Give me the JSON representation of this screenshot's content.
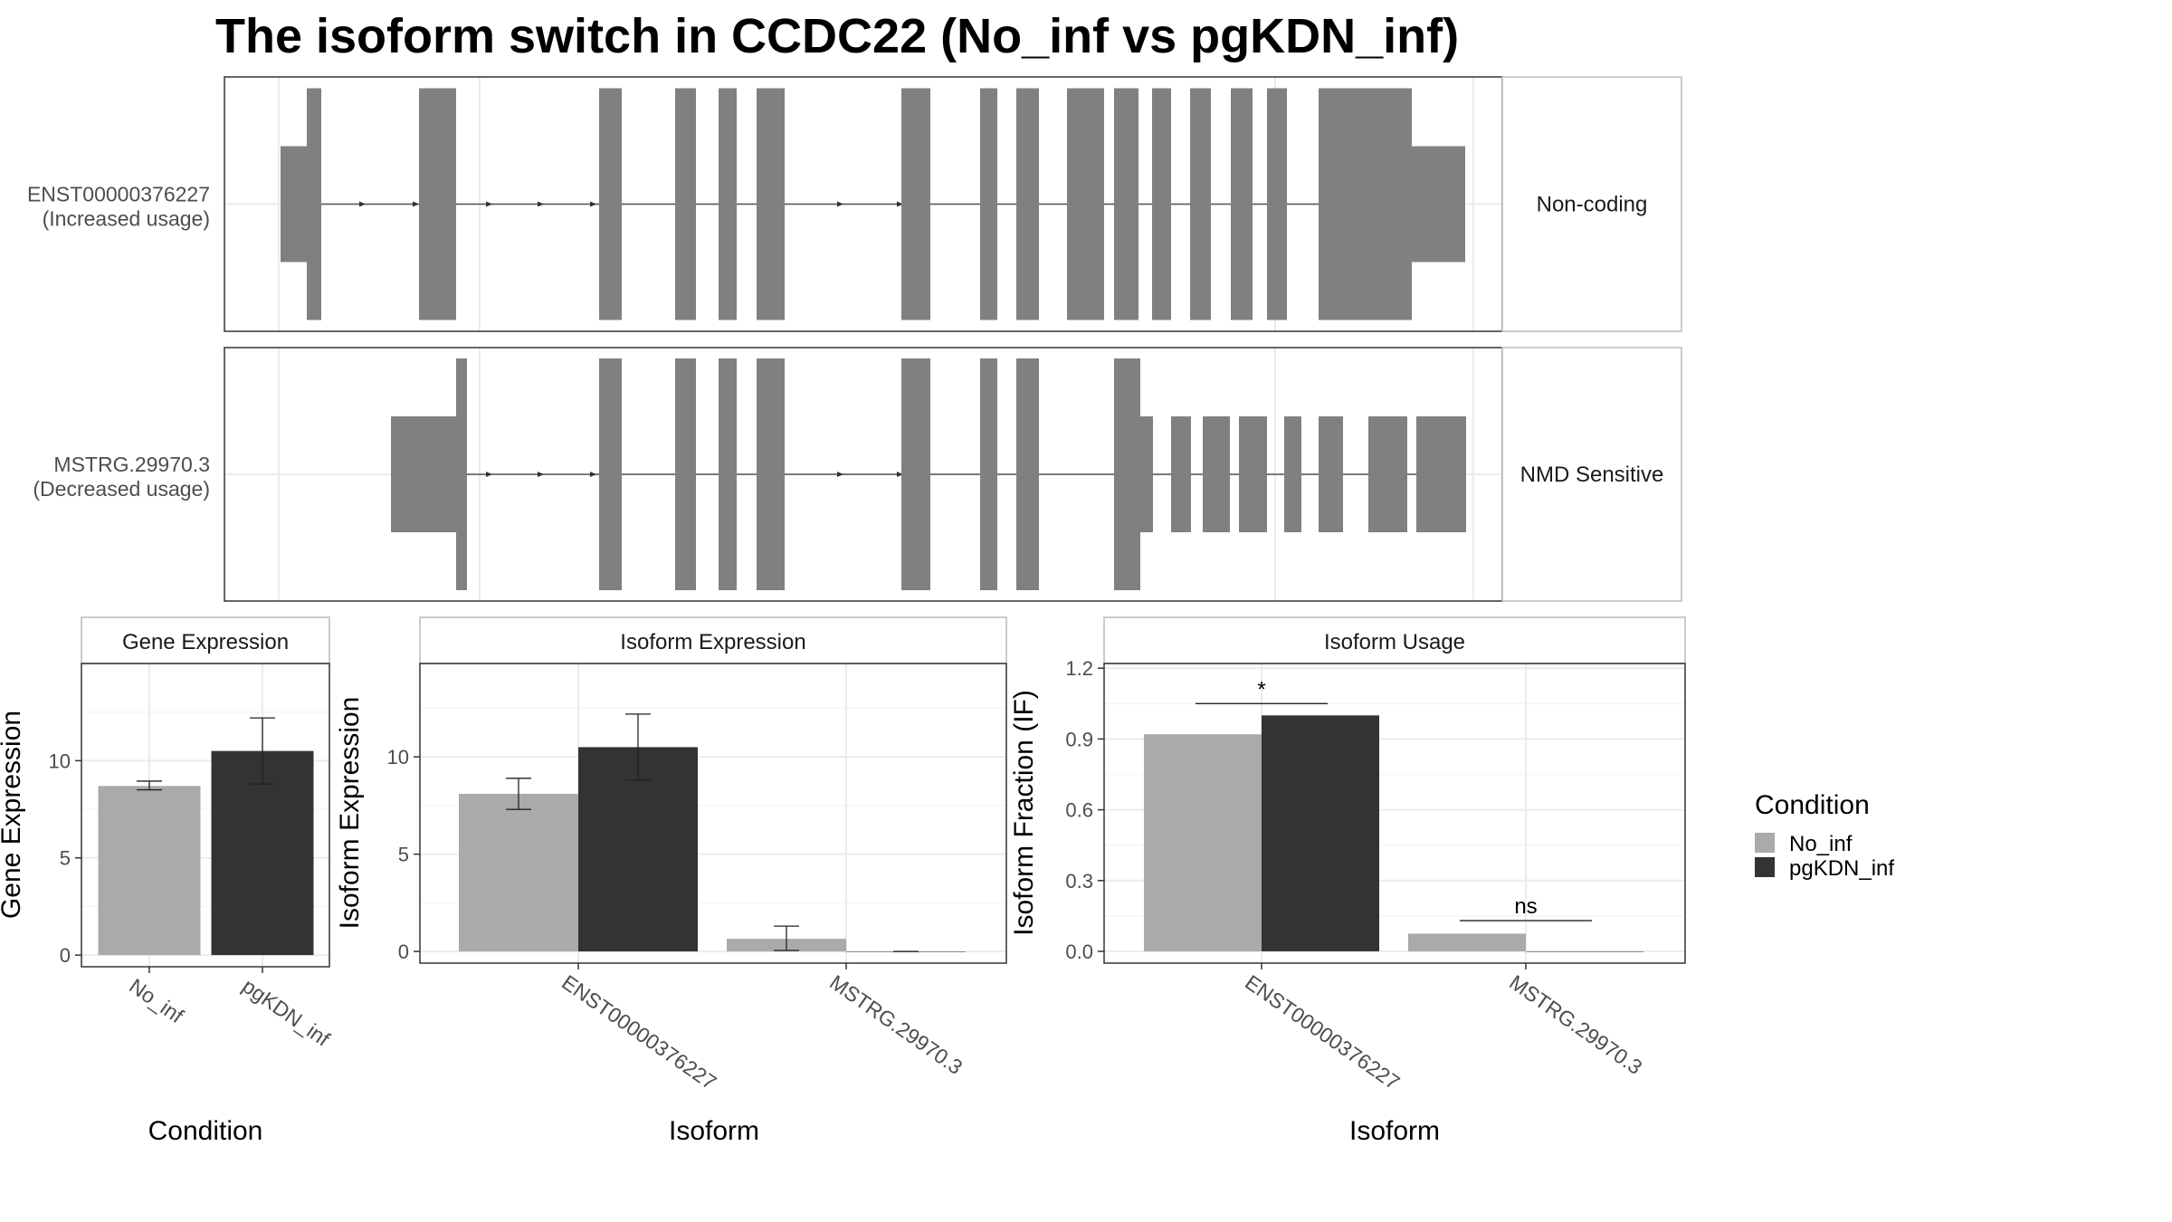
{
  "figure_title": "The isoform switch in CCDC22 (No_inf vs pgKDN_inf)",
  "colors": {
    "no_inf": "#aaaaaa",
    "pgkdn_inf": "#333333",
    "feature": "#808080",
    "grid_major": "#ebebeb",
    "grid_minor": "#f5f5f5",
    "panel_border": "#333333",
    "strip_border": "#bbbbbb",
    "text": "#4d4d4d"
  },
  "legend": {
    "title": "Condition",
    "items": [
      {
        "label": "No_inf",
        "color": "#aaaaaa"
      },
      {
        "label": "pgKDN_inf",
        "color": "#333333"
      }
    ]
  },
  "chart_data": [
    {
      "type": "gene_structure",
      "tracks": [
        {
          "name": "ENST00000376227",
          "usage": "(Increased usage)",
          "category": "Non-coding",
          "utr": [
            [
              62,
              91
            ],
            [
              1312,
              1371
            ]
          ],
          "cds": [
            [
              91,
              107
            ],
            [
              215,
              256
            ],
            [
              414,
              439
            ],
            [
              498,
              521
            ],
            [
              546,
              566
            ],
            [
              588,
              619
            ],
            [
              748,
              780
            ],
            [
              835,
              854
            ],
            [
              875,
              900
            ],
            [
              931,
              972
            ],
            [
              983,
              1010
            ],
            [
              1025,
              1046
            ],
            [
              1067,
              1090
            ],
            [
              1112,
              1136
            ],
            [
              1152,
              1174
            ],
            [
              1209,
              1236
            ],
            [
              1236,
              1247
            ],
            [
              1247,
              1312
            ]
          ],
          "arrows": [
            153,
            212,
            293,
            350,
            408,
            681,
            747
          ]
        },
        {
          "name": "MSTRG.29970.3",
          "usage": "(Decreased usage)",
          "category": "NMD Sensitive",
          "utr": [
            [
              184,
              256
            ],
            [
              1012,
              1026
            ],
            [
              1046,
              1068
            ],
            [
              1081,
              1111
            ],
            [
              1121,
              1152
            ],
            [
              1171,
              1190
            ],
            [
              1209,
              1236
            ],
            [
              1264,
              1307
            ],
            [
              1317,
              1372
            ]
          ],
          "cds": [
            [
              256,
              268
            ],
            [
              414,
              439
            ],
            [
              498,
              521
            ],
            [
              546,
              566
            ],
            [
              588,
              619
            ],
            [
              748,
              780
            ],
            [
              835,
              854
            ],
            [
              875,
              900
            ],
            [
              983,
              1001
            ],
            [
              1001,
              1012
            ]
          ],
          "arrows": [
            293,
            350,
            408,
            681,
            747
          ]
        }
      ]
    },
    {
      "type": "bar",
      "title": "Gene Expression",
      "xlabel": "Condition",
      "ylabel": "Gene Expression",
      "categories": [
        "No_inf",
        "pgKDN_inf"
      ],
      "values": [
        8.7,
        10.5
      ],
      "errors": [
        [
          8.5,
          8.95
        ],
        [
          8.8,
          12.2
        ]
      ],
      "ylim": [
        -0.6,
        15
      ],
      "yticks": [
        0,
        5,
        10
      ]
    },
    {
      "type": "bar",
      "title": "Isoform Expression",
      "xlabel": "Isoform",
      "ylabel": "Isoform Expression",
      "categories": [
        "ENST00000376227",
        "MSTRG.29970.3"
      ],
      "series": [
        {
          "name": "No_inf",
          "values": [
            8.1,
            0.65
          ],
          "errors": [
            [
              7.3,
              8.9
            ],
            [
              0.05,
              1.3
            ]
          ]
        },
        {
          "name": "pgKDN_inf",
          "values": [
            10.5,
            0.0
          ],
          "errors": [
            [
              8.8,
              12.2
            ],
            [
              0.0,
              0.0
            ]
          ]
        }
      ],
      "ylim": [
        -0.6,
        14.8
      ],
      "yticks": [
        0,
        5,
        10
      ]
    },
    {
      "type": "bar",
      "title": "Isoform Usage",
      "xlabel": "Isoform",
      "ylabel": "Isoform Fraction (IF)",
      "categories": [
        "ENST00000376227",
        "MSTRG.29970.3"
      ],
      "series": [
        {
          "name": "No_inf",
          "values": [
            0.92,
            0.075
          ]
        },
        {
          "name": "pgKDN_inf",
          "values": [
            1.0,
            0.0
          ]
        }
      ],
      "annotations": [
        {
          "category": 0,
          "label": "*",
          "y": 1.05
        },
        {
          "category": 1,
          "label": "ns",
          "y": 0.13
        }
      ],
      "ylim": [
        -0.05,
        1.22
      ],
      "yticks": [
        0.0,
        0.3,
        0.6,
        0.9,
        1.2
      ],
      "ytick_labels": [
        "0.0",
        "0.3",
        "0.6",
        "0.9",
        "1.2"
      ]
    }
  ]
}
